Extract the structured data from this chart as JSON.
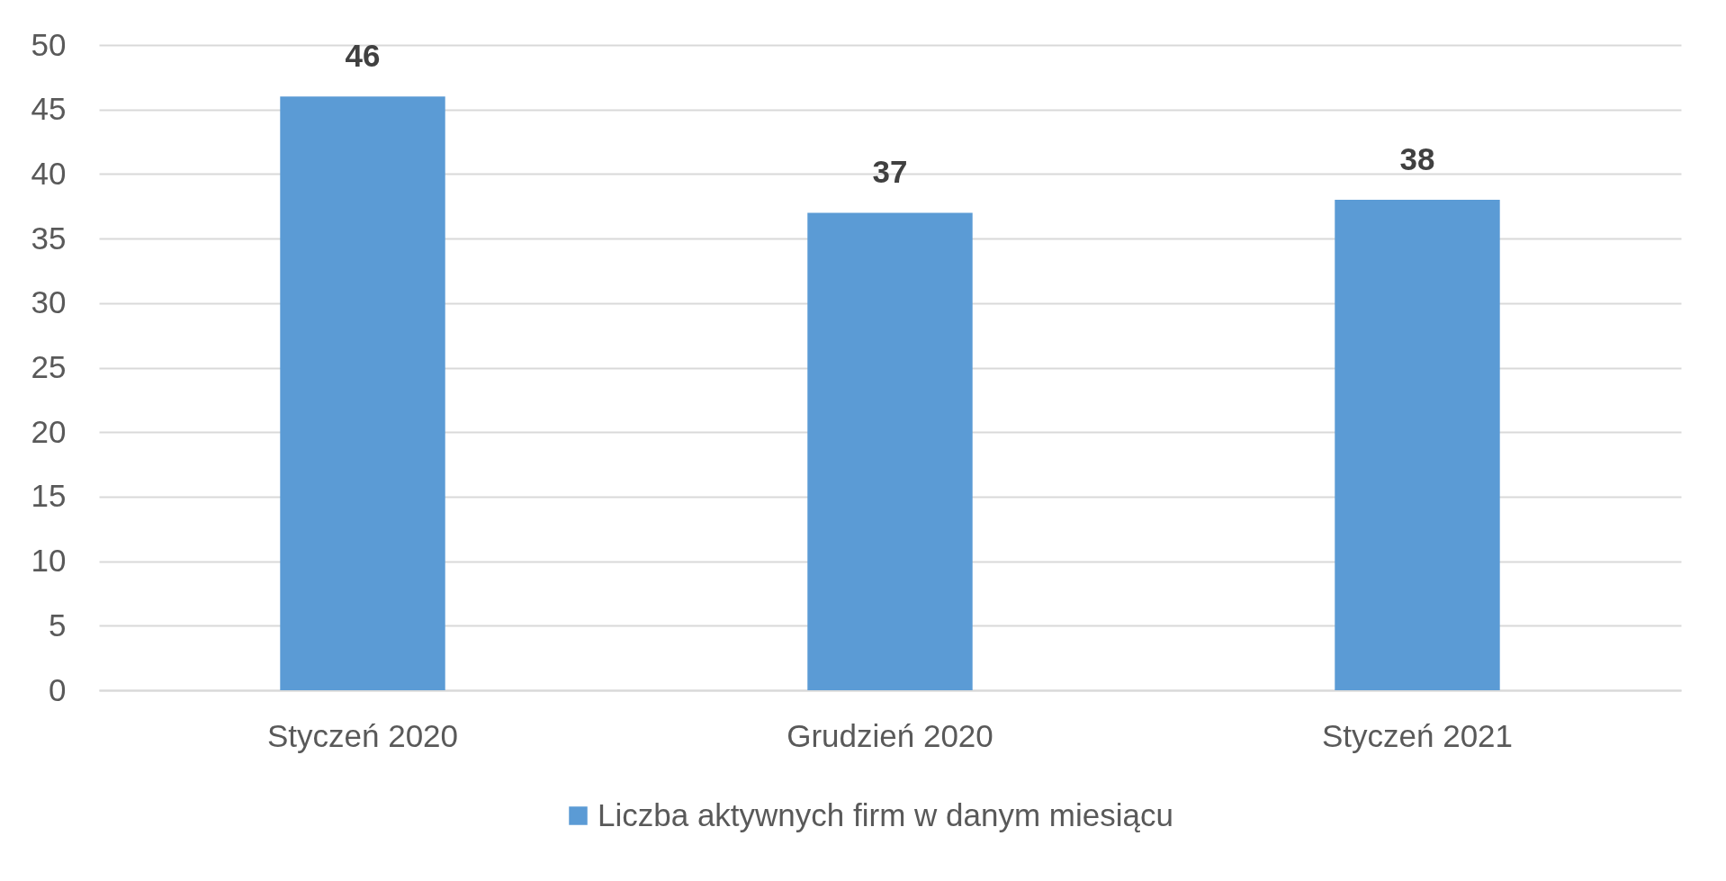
{
  "chart_data": {
    "type": "bar",
    "categories": [
      "Styczeń 2020",
      "Grudzień 2020",
      "Styczeń 2021"
    ],
    "series": [
      {
        "name": "Liczba aktywnych firm w danym miesiącu",
        "color": "#5b9bd5",
        "values": [
          46,
          37,
          38
        ]
      }
    ],
    "ylim": [
      0,
      50
    ],
    "yticks": [
      0,
      5,
      10,
      15,
      20,
      25,
      30,
      35,
      40,
      45,
      50
    ],
    "grid": "y",
    "legend": "bottom",
    "data_labels": true
  }
}
